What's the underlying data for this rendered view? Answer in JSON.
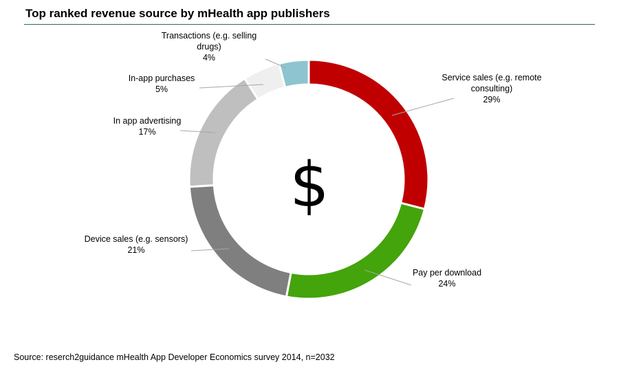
{
  "title": "Top ranked revenue source by mHealth app publishers",
  "source": "Source: reserch2guidance mHealth App Developer Economics survey 2014, n=2032",
  "center_symbol": "$",
  "chart_data": {
    "type": "pie",
    "donut": true,
    "title": "Top ranked revenue source by mHealth app publishers",
    "slices": [
      {
        "label_lines": [
          "Service sales (e.g. remote",
          "consulting)"
        ],
        "value": 29,
        "value_label": "29%",
        "color": "#c00000"
      },
      {
        "label_lines": [
          "Pay per download"
        ],
        "value": 24,
        "value_label": "24%",
        "color": "#43a40b"
      },
      {
        "label_lines": [
          "Device sales (e.g. sensors)"
        ],
        "value": 21,
        "value_label": "21%",
        "color": "#7f7f7f"
      },
      {
        "label_lines": [
          "In app advertising"
        ],
        "value": 17,
        "value_label": "17%",
        "color": "#bfbfbf"
      },
      {
        "label_lines": [
          "In-app purchases"
        ],
        "value": 5,
        "value_label": "5%",
        "color": "#efefef"
      },
      {
        "label_lines": [
          "Transactions (e.g. selling",
          "drugs)"
        ],
        "value": 4,
        "value_label": "4%",
        "color": "#8ec4cf"
      }
    ]
  }
}
